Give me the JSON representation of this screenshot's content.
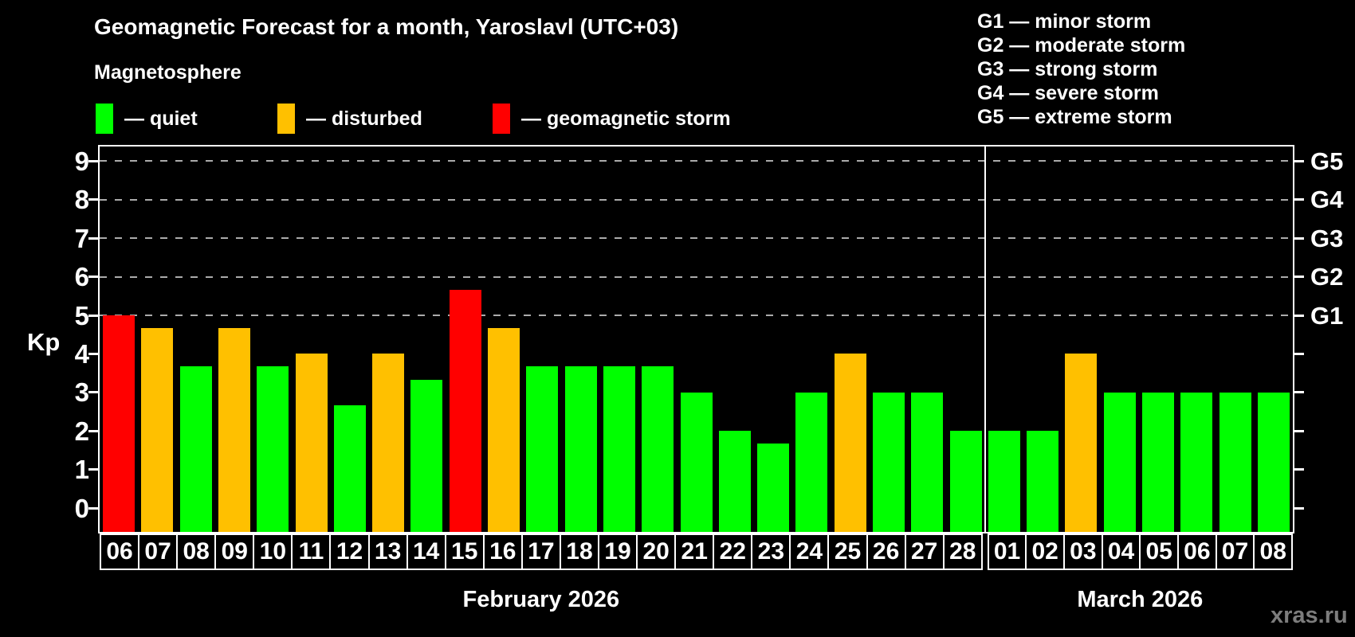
{
  "title": "Geomagnetic Forecast for a month, Yaroslavl (UTC+03)",
  "subtitle": "Magnetosphere",
  "legend": {
    "items": [
      {
        "name": "quiet",
        "label": "— quiet",
        "color": "#00ff00"
      },
      {
        "name": "disturbed",
        "label": "— disturbed",
        "color": "#ffc000"
      },
      {
        "name": "storm",
        "label": "— geomagnetic storm",
        "color": "#ff0000"
      }
    ]
  },
  "storm_scale_legend": [
    "G1 — minor storm",
    "G2 — moderate storm",
    "G3 — strong storm",
    "G4 — severe storm",
    "G5 — extreme storm"
  ],
  "watermark": "xras.ru",
  "chart_data": {
    "type": "bar",
    "title": "Geomagnetic Forecast for a month, Yaroslavl (UTC+03)",
    "ylabel": "Kp",
    "ylim": [
      0,
      9.3
    ],
    "y_ticks": [
      0,
      1,
      2,
      3,
      4,
      5,
      6,
      7,
      8,
      9
    ],
    "gridlines_at": [
      5,
      6,
      7,
      8,
      9
    ],
    "grid": "dashed, upper half only",
    "legend_position": "top-left",
    "right_axis_labels": [
      {
        "text": "G1",
        "kp": 5
      },
      {
        "text": "G2",
        "kp": 6
      },
      {
        "text": "G3",
        "kp": 7
      },
      {
        "text": "G4",
        "kp": 8
      },
      {
        "text": "G5",
        "kp": 9
      }
    ],
    "status_colors": {
      "quiet": "#00ff00",
      "disturbed": "#ffc000",
      "storm": "#ff0000"
    },
    "categories": [
      "06",
      "07",
      "08",
      "09",
      "10",
      "11",
      "12",
      "13",
      "14",
      "15",
      "16",
      "17",
      "18",
      "19",
      "20",
      "21",
      "22",
      "23",
      "24",
      "25",
      "26",
      "27",
      "28",
      "01",
      "02",
      "03",
      "04",
      "05",
      "06",
      "07",
      "08"
    ],
    "values": [
      5.0,
      4.67,
      3.67,
      4.67,
      3.67,
      4.0,
      2.67,
      4.0,
      3.33,
      5.67,
      4.67,
      3.67,
      3.67,
      3.67,
      3.67,
      3.0,
      2.0,
      1.67,
      3.0,
      4.0,
      3.0,
      3.0,
      2.0,
      2.0,
      2.0,
      4.0,
      3.0,
      3.0,
      3.0,
      3.0,
      3.0
    ],
    "statuses": [
      "storm",
      "disturbed",
      "quiet",
      "disturbed",
      "quiet",
      "disturbed",
      "quiet",
      "disturbed",
      "quiet",
      "storm",
      "disturbed",
      "quiet",
      "quiet",
      "quiet",
      "quiet",
      "quiet",
      "quiet",
      "quiet",
      "quiet",
      "disturbed",
      "quiet",
      "quiet",
      "quiet",
      "quiet",
      "quiet",
      "disturbed",
      "quiet",
      "quiet",
      "quiet",
      "quiet",
      "quiet"
    ],
    "months": [
      {
        "label": "February 2026",
        "points": [
          {
            "date": "06",
            "kp": 5.0,
            "status": "storm"
          },
          {
            "date": "07",
            "kp": 4.67,
            "status": "disturbed"
          },
          {
            "date": "08",
            "kp": 3.67,
            "status": "quiet"
          },
          {
            "date": "09",
            "kp": 4.67,
            "status": "disturbed"
          },
          {
            "date": "10",
            "kp": 3.67,
            "status": "quiet"
          },
          {
            "date": "11",
            "kp": 4.0,
            "status": "disturbed"
          },
          {
            "date": "12",
            "kp": 2.67,
            "status": "quiet"
          },
          {
            "date": "13",
            "kp": 4.0,
            "status": "disturbed"
          },
          {
            "date": "14",
            "kp": 3.33,
            "status": "quiet"
          },
          {
            "date": "15",
            "kp": 5.67,
            "status": "storm"
          },
          {
            "date": "16",
            "kp": 4.67,
            "status": "disturbed"
          },
          {
            "date": "17",
            "kp": 3.67,
            "status": "quiet"
          },
          {
            "date": "18",
            "kp": 3.67,
            "status": "quiet"
          },
          {
            "date": "19",
            "kp": 3.67,
            "status": "quiet"
          },
          {
            "date": "20",
            "kp": 3.67,
            "status": "quiet"
          },
          {
            "date": "21",
            "kp": 3.0,
            "status": "quiet"
          },
          {
            "date": "22",
            "kp": 2.0,
            "status": "quiet"
          },
          {
            "date": "23",
            "kp": 1.67,
            "status": "quiet"
          },
          {
            "date": "24",
            "kp": 3.0,
            "status": "quiet"
          },
          {
            "date": "25",
            "kp": 4.0,
            "status": "disturbed"
          },
          {
            "date": "26",
            "kp": 3.0,
            "status": "quiet"
          },
          {
            "date": "27",
            "kp": 3.0,
            "status": "quiet"
          },
          {
            "date": "28",
            "kp": 2.0,
            "status": "quiet"
          }
        ]
      },
      {
        "label": "March 2026",
        "points": [
          {
            "date": "01",
            "kp": 2.0,
            "status": "quiet"
          },
          {
            "date": "02",
            "kp": 2.0,
            "status": "quiet"
          },
          {
            "date": "03",
            "kp": 4.0,
            "status": "disturbed"
          },
          {
            "date": "04",
            "kp": 3.0,
            "status": "quiet"
          },
          {
            "date": "05",
            "kp": 3.0,
            "status": "quiet"
          },
          {
            "date": "06",
            "kp": 3.0,
            "status": "quiet"
          },
          {
            "date": "07",
            "kp": 3.0,
            "status": "quiet"
          },
          {
            "date": "08",
            "kp": 3.0,
            "status": "quiet"
          }
        ]
      }
    ]
  }
}
